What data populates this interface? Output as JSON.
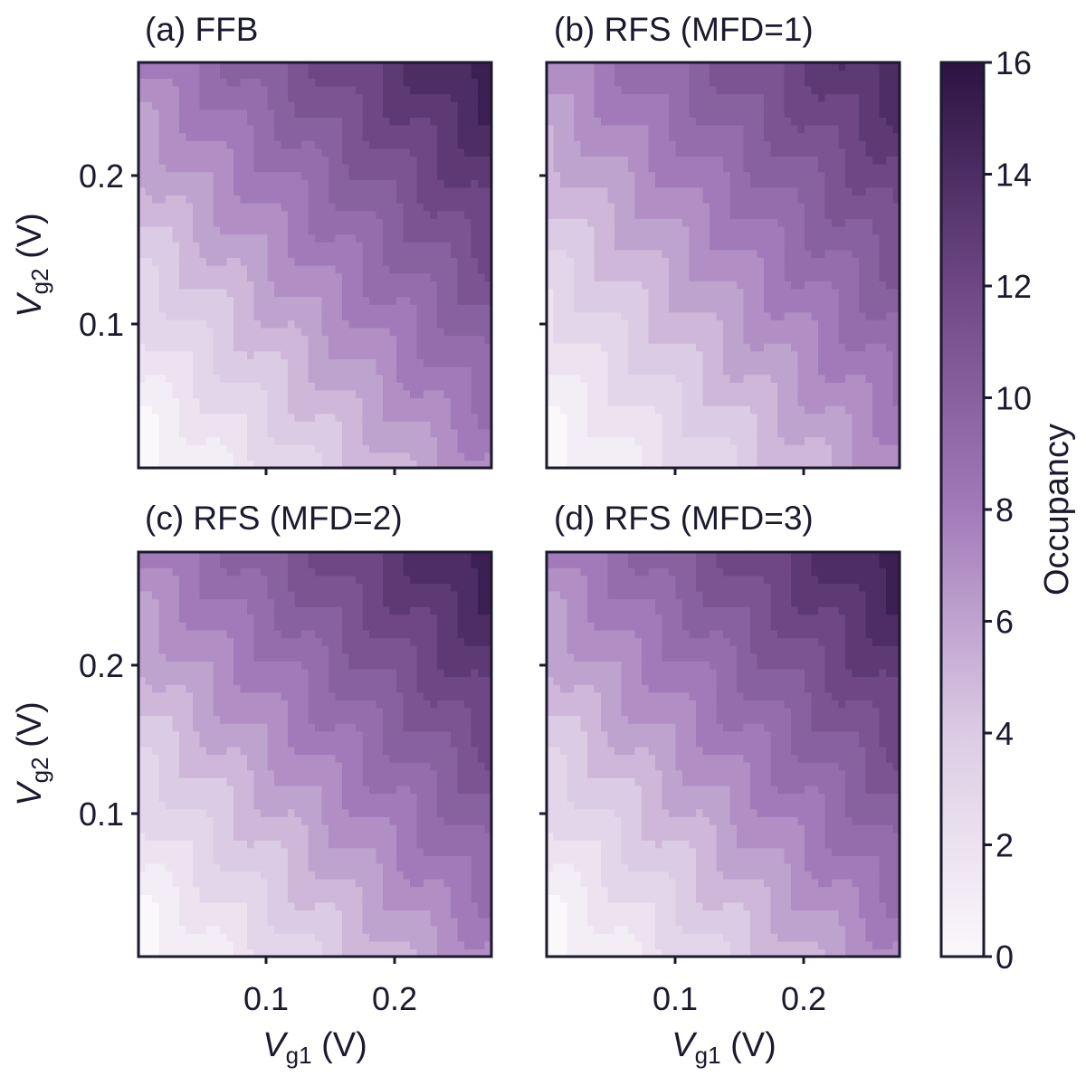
{
  "chart_data": {
    "type": "heatmap",
    "xlim": [
      0.0,
      0.275
    ],
    "ylim": [
      0.0,
      0.275
    ],
    "x_ticks": [
      0.1,
      0.2
    ],
    "y_ticks": [
      0.1,
      0.2
    ],
    "x_tick_labels": [
      "0.1",
      "0.2"
    ],
    "y_tick_labels": [
      "0.1",
      "0.2"
    ],
    "xlabel": {
      "symbol": "V",
      "subscript": "g1",
      "unit": "(V)"
    },
    "ylabel": {
      "symbol": "V",
      "subscript": "g2",
      "unit": "(V)"
    },
    "colormap": "light-to-dark purple",
    "colors": {
      "low": "#fbf8fb",
      "mid": "#a27ab9",
      "high": "#2c1342"
    },
    "colorbar": {
      "label": "Occupancy",
      "range": [
        0,
        16
      ],
      "ticks": [
        0,
        2,
        4,
        6,
        8,
        10,
        12,
        14,
        16
      ],
      "tick_labels": [
        "0",
        "2",
        "4",
        "6",
        "8",
        "10",
        "12",
        "14",
        "16"
      ]
    },
    "panels": [
      {
        "id": "a",
        "title": "(a) FFB",
        "max_occupancy": 16,
        "show_y_ticklabels": true,
        "show_x_ticklabels": false
      },
      {
        "id": "b",
        "title": "(b) RFS (MFD=1)",
        "max_occupancy": 15,
        "show_y_ticklabels": false,
        "show_x_ticklabels": false
      },
      {
        "id": "c",
        "title": "(c) RFS (MFD=2)",
        "max_occupancy": 16,
        "show_y_ticklabels": true,
        "show_x_ticklabels": true
      },
      {
        "id": "d",
        "title": "(d) RFS (MFD=3)",
        "max_occupancy": 16,
        "show_y_ticklabels": false,
        "show_x_ticklabels": true
      }
    ]
  }
}
